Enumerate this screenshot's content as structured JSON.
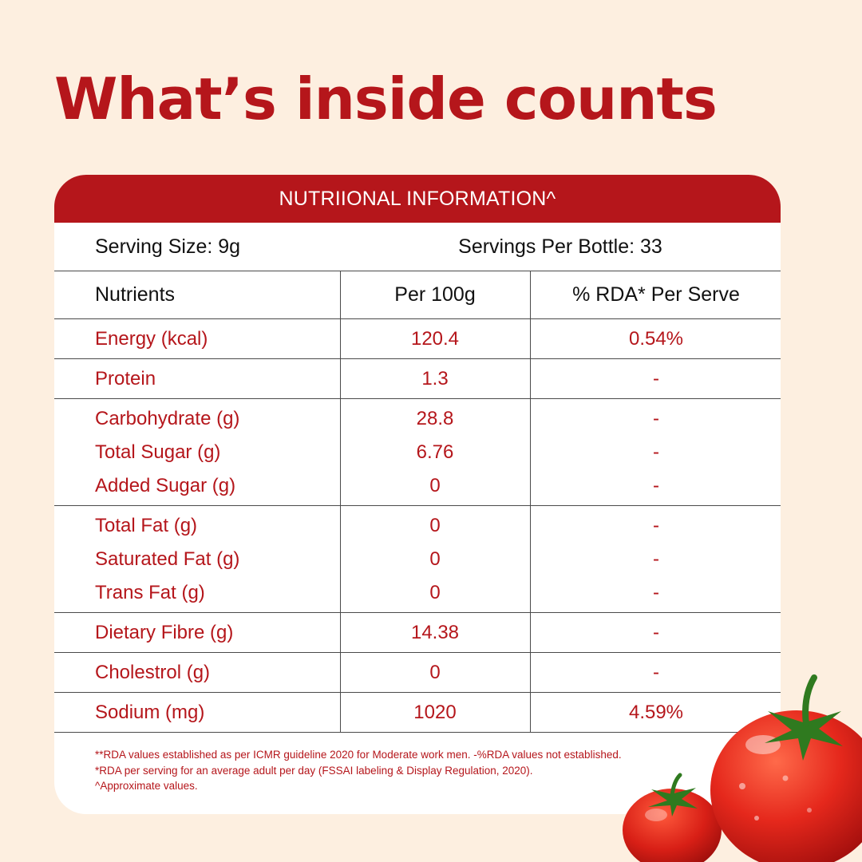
{
  "headline": "What’s inside counts",
  "card": {
    "header": "NUTRIIONAL INFORMATION^",
    "serving_size": "Serving Size: 9g",
    "servings_per_bottle": "Servings Per Bottle: 33",
    "columns": [
      "Nutrients",
      "Per 100g",
      "% RDA* Per Serve"
    ],
    "rows": [
      {
        "nutrient": "Energy (kcal)",
        "per100": "120.4",
        "rda": "0.54%"
      },
      {
        "nutrient": "Protein",
        "per100": "1.3",
        "rda": "-"
      },
      {
        "nutrient": "Carbohydrate (g)",
        "per100": "28.8",
        "rda": "-"
      },
      {
        "nutrient": "Total Sugar (g)",
        "per100": "6.76",
        "rda": "-"
      },
      {
        "nutrient": "Added Sugar (g)",
        "per100": "0",
        "rda": "-"
      },
      {
        "nutrient": "Total Fat (g)",
        "per100": "0",
        "rda": "-"
      },
      {
        "nutrient": "Saturated Fat (g)",
        "per100": "0",
        "rda": "-"
      },
      {
        "nutrient": "Trans Fat (g)",
        "per100": "0",
        "rda": "-"
      },
      {
        "nutrient": "Dietary Fibre (g)",
        "per100": "14.38",
        "rda": "-"
      },
      {
        "nutrient": "Cholestrol (g)",
        "per100": "0",
        "rda": "-"
      },
      {
        "nutrient": "Sodium (mg)",
        "per100": "1020",
        "rda": "4.59%"
      }
    ],
    "footnotes": [
      "**RDA values established as per ICMR guideline 2020 for Moderate work men. -%RDA values not established.",
      "*RDA per serving for an average adult per day (FSSAI labeling & Display Regulation, 2020).",
      "^Approximate values."
    ]
  },
  "colors": {
    "background": "#fdefe0",
    "brand_red": "#b5161b",
    "card": "#ffffff"
  },
  "decoration": "tomatoes"
}
